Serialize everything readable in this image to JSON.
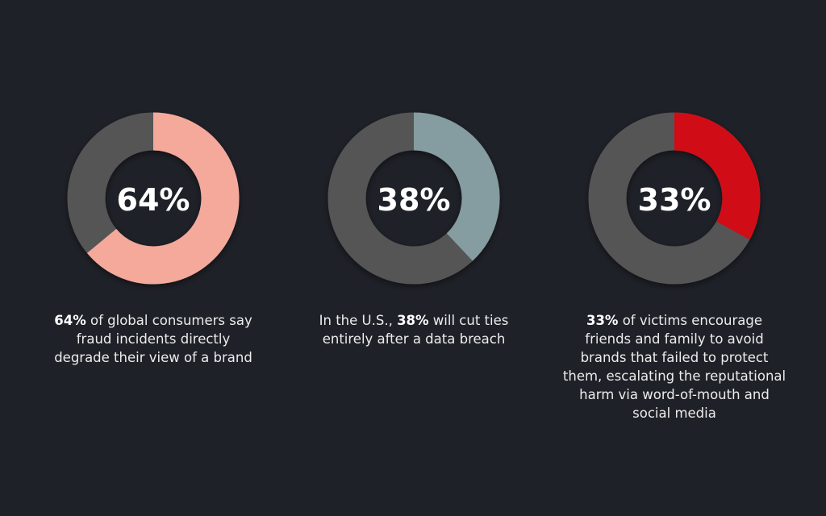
{
  "chart_data": [
    {
      "type": "donut",
      "values": [
        64
      ],
      "value_labels": [
        "64%"
      ],
      "color": "#f4a99b",
      "ylim": [
        0,
        100
      ],
      "caption": [
        {
          "text": "64%",
          "bold": true
        },
        {
          "text": " of global consumers say fraud incidents directly degrade their view of a brand",
          "bold": false
        }
      ]
    },
    {
      "type": "donut",
      "values": [
        38
      ],
      "value_labels": [
        "38%"
      ],
      "color": "#859ca0",
      "ylim": [
        0,
        100
      ],
      "caption": [
        {
          "text": "In the U.S., ",
          "bold": false
        },
        {
          "text": "38%",
          "bold": true
        },
        {
          "text": " will cut ties entirely after a data breach",
          "bold": false
        }
      ]
    },
    {
      "type": "donut",
      "values": [
        33
      ],
      "value_labels": [
        "33%"
      ],
      "color": "#d00a17",
      "ylim": [
        0,
        100
      ],
      "caption": [
        {
          "text": "33%",
          "bold": true
        },
        {
          "text": " of victims encourage friends and family to avoid brands that failed to protect them, escalating the reputational harm via word-of-mouth and social media",
          "bold": false
        }
      ]
    }
  ]
}
